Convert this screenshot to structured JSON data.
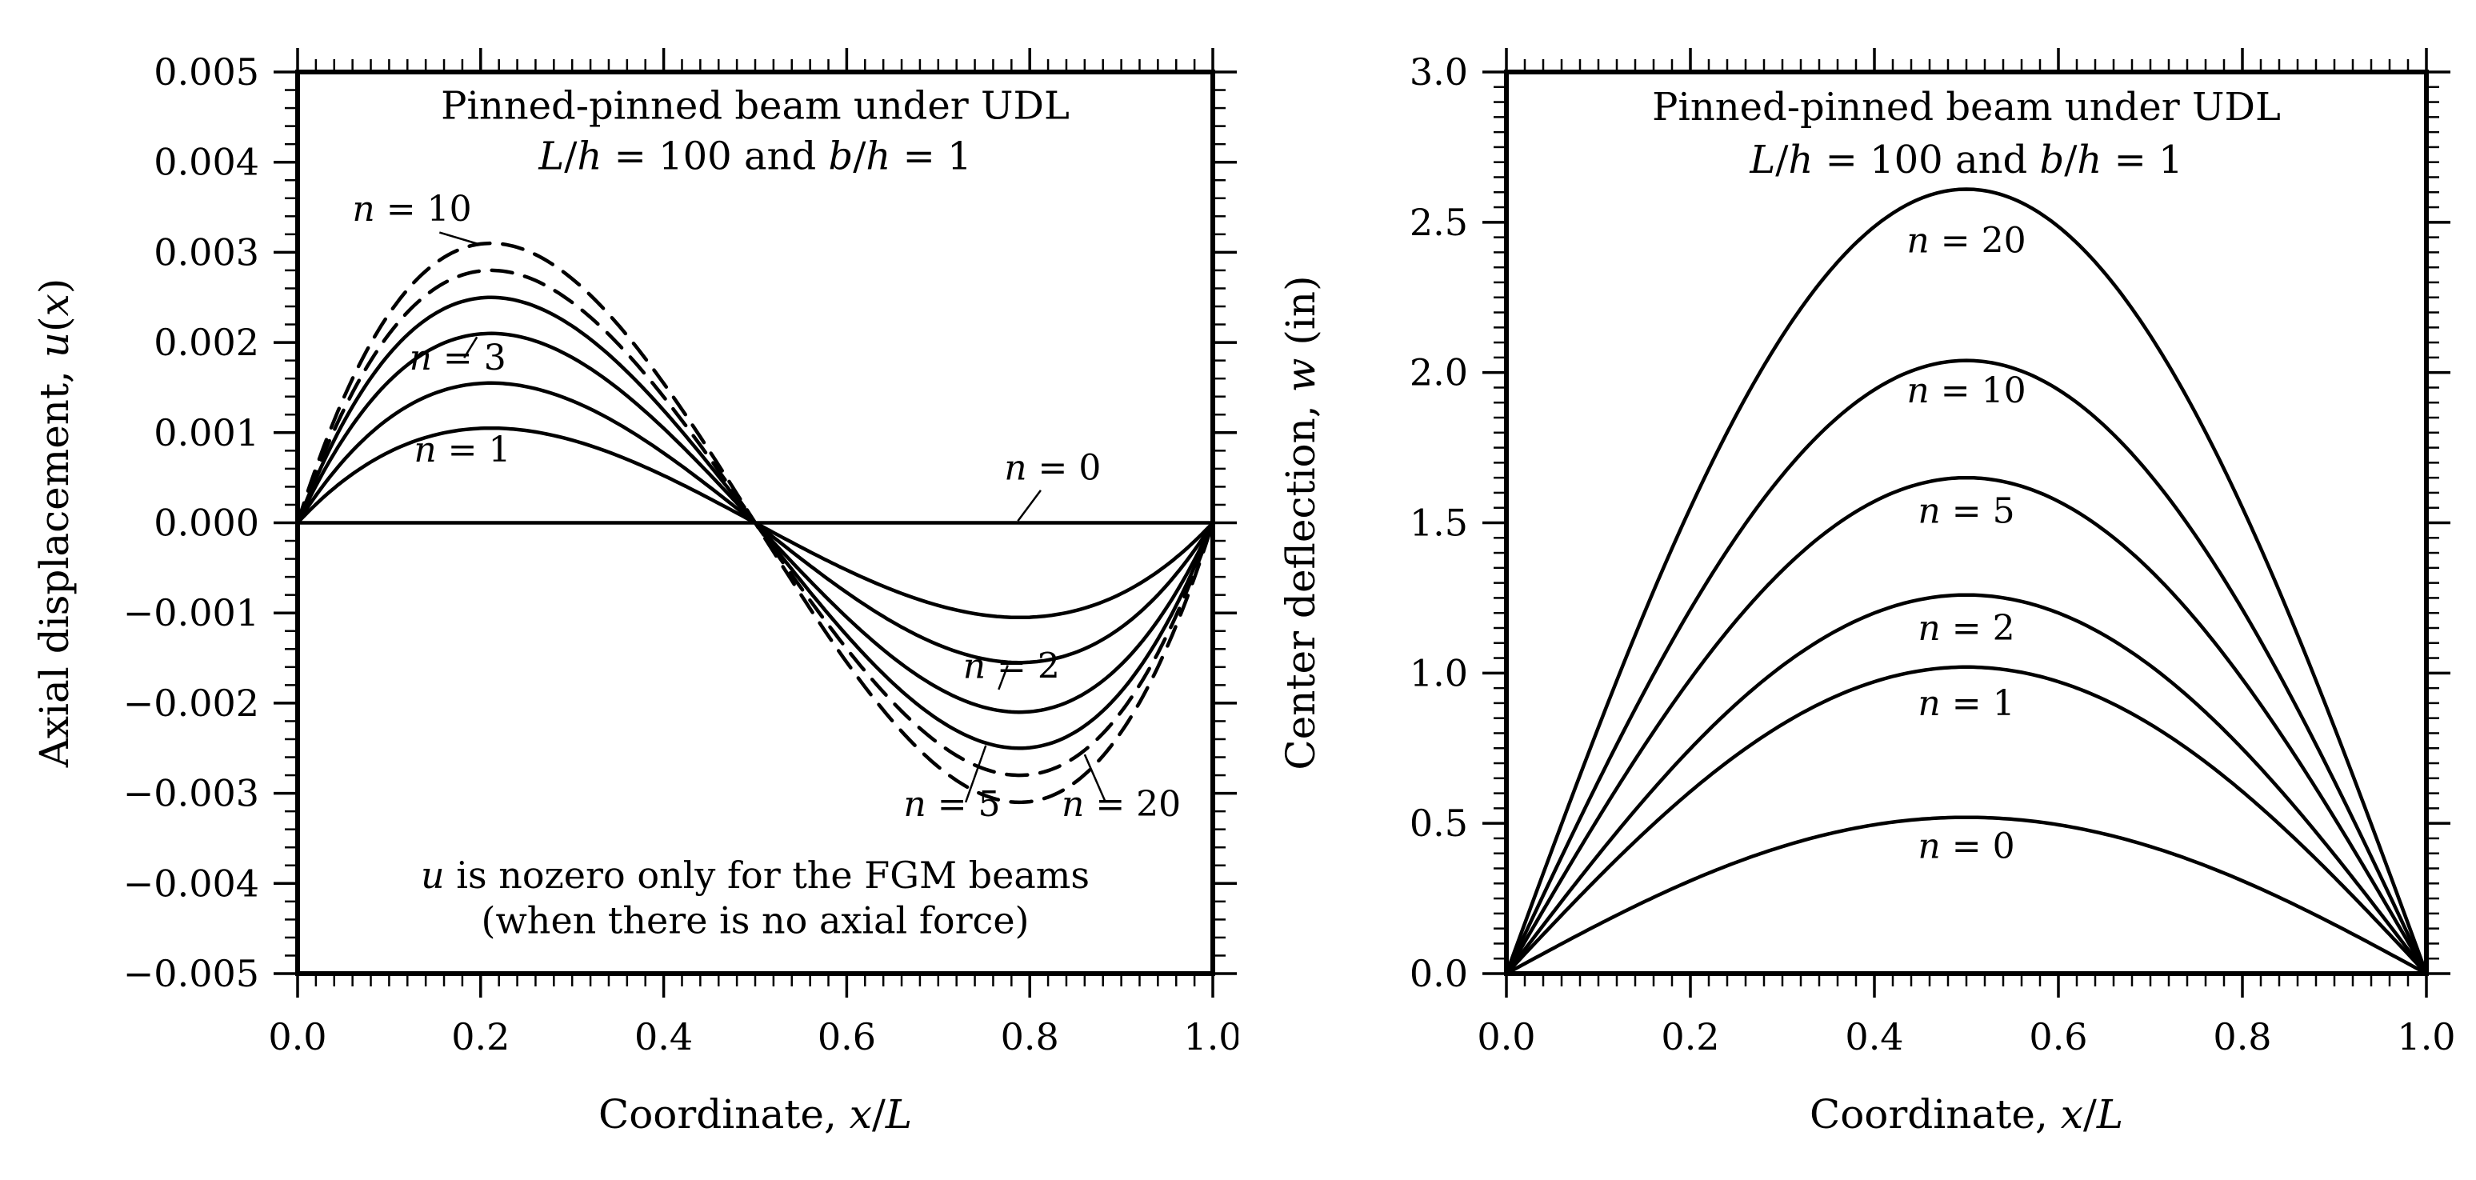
{
  "figure": {
    "background": "#ffffff",
    "line_color": "#000000"
  },
  "chart_data": [
    {
      "id": "axial-displacement",
      "type": "line",
      "title_lines": [
        {
          "text": "Pinned-pinned beam under UDL",
          "x": 0.5,
          "y": 0.00448
        },
        {
          "text": "L/h = 100 and b/h = 1",
          "x": 0.5,
          "y": 0.00392
        }
      ],
      "xlabel": "Coordinate,  x/L",
      "ylabel": "Axial displacement, u(x)",
      "xlim": [
        0,
        1
      ],
      "ylim": [
        -0.005,
        0.005
      ],
      "xticklabels": [
        "0.0",
        "0.2",
        "0.4",
        "0.6",
        "0.8",
        "1.0"
      ],
      "yticklabels": [
        "0.005",
        "0.004",
        "0.003",
        "0.002",
        "0.001",
        "0.000",
        "-0.001",
        "-0.002",
        "-0.003",
        "-0.004",
        "-0.005"
      ],
      "x_minor_step": 0.02,
      "y_minor_step": 0.0002,
      "grid": false,
      "shape": "cubic-antisymmetric",
      "shape_formula": "u(x) = peak * x(1-x)(1-2x)/0.09623 ; extrema at x = 0.211 (max) and x = 0.789 (min), zero at x = 0.5",
      "series": [
        {
          "name": "n = 0",
          "peak": 0.0,
          "dashed": false
        },
        {
          "name": "n = 1",
          "peak": 0.00105,
          "dashed": false
        },
        {
          "name": "n = 2",
          "peak": 0.00155,
          "dashed": false
        },
        {
          "name": "n = 3",
          "peak": 0.0021,
          "dashed": false
        },
        {
          "name": "n = 5",
          "peak": 0.0025,
          "dashed": false
        },
        {
          "name": "n = 10",
          "peak": 0.0031,
          "dashed": true
        },
        {
          "name": "n = 20",
          "peak": 0.0028,
          "dashed": true
        }
      ],
      "curve_labels": [
        {
          "text": "n = 10",
          "x": 0.125,
          "y": 0.00335,
          "leader": [
            0.155,
            0.00322,
            0.198,
            0.00309
          ]
        },
        {
          "text": "n = 3",
          "x": 0.175,
          "y": 0.0017,
          "leader": [
            0.182,
            0.00183,
            0.196,
            0.00206
          ]
        },
        {
          "text": "n = 1",
          "x": 0.18,
          "y": 0.00068,
          "leader": null
        },
        {
          "text": "n = 0",
          "x": 0.825,
          "y": 0.00048,
          "leader": [
            0.812,
            0.00036,
            0.787,
            2e-05
          ]
        },
        {
          "text": "n = 2",
          "x": 0.78,
          "y": -0.00172,
          "leader": [
            0.766,
            -0.00185,
            0.776,
            -0.00158
          ]
        },
        {
          "text": "n = 5",
          "x": 0.715,
          "y": -0.00325,
          "leader": [
            0.73,
            -0.0031,
            0.752,
            -0.00247
          ]
        },
        {
          "text": "n = 20",
          "x": 0.9,
          "y": -0.00325,
          "leader": [
            0.882,
            -0.00308,
            0.86,
            -0.00257
          ]
        }
      ],
      "annotations": [
        {
          "text": "u is nozero only for the FGM beams",
          "x": 0.5,
          "y": -0.00405
        },
        {
          "text": "(when there is no axial force)",
          "x": 0.5,
          "y": -0.00455
        }
      ]
    },
    {
      "id": "center-deflection",
      "type": "line",
      "title_lines": [
        {
          "text": "Pinned-pinned beam under UDL",
          "x": 0.5,
          "y": 2.84
        },
        {
          "text": "L/h = 100 and b/h = 1",
          "x": 0.5,
          "y": 2.665
        }
      ],
      "xlabel": "Coordinate, x/L",
      "ylabel": "Center deflection, w (in)",
      "xlim": [
        0,
        1
      ],
      "ylim": [
        0,
        3
      ],
      "xticklabels": [
        "0.0",
        "0.2",
        "0.4",
        "0.6",
        "0.8",
        "1.0"
      ],
      "yticklabels": [
        "0.0",
        "0.5",
        "1.0",
        "1.5",
        "2.0",
        "2.5",
        "3.0"
      ],
      "x_minor_step": 0.02,
      "y_minor_step": 0.05,
      "grid": false,
      "shape": "udl-deflection",
      "shape_formula": "w(x) = peak * (x^4 - 2x^3 + x)/0.3125 ; maximum at x = 0.5, zero at x = 0 and x = 1",
      "series": [
        {
          "name": "n = 0",
          "peak": 0.52,
          "dashed": false
        },
        {
          "name": "n = 1",
          "peak": 1.02,
          "dashed": false
        },
        {
          "name": "n = 2",
          "peak": 1.26,
          "dashed": false
        },
        {
          "name": "n = 5",
          "peak": 1.65,
          "dashed": false
        },
        {
          "name": "n = 10",
          "peak": 2.04,
          "dashed": false
        },
        {
          "name": "n = 20",
          "peak": 2.61,
          "dashed": false
        }
      ],
      "curve_labels": [
        {
          "text": "n = 20",
          "x": 0.5,
          "y": 2.4,
          "leader": null
        },
        {
          "text": "n = 10",
          "x": 0.5,
          "y": 1.9,
          "leader": null
        },
        {
          "text": "n = 5",
          "x": 0.5,
          "y": 1.5,
          "leader": null
        },
        {
          "text": "n = 2",
          "x": 0.5,
          "y": 1.11,
          "leader": null
        },
        {
          "text": "n = 1",
          "x": 0.5,
          "y": 0.86,
          "leader": null
        },
        {
          "text": "n = 0",
          "x": 0.5,
          "y": 0.385,
          "leader": null
        }
      ],
      "annotations": []
    }
  ]
}
